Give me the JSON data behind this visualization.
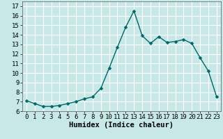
{
  "title": "",
  "xlabel": "Humidex (Indice chaleur)",
  "x": [
    0,
    1,
    2,
    3,
    4,
    5,
    6,
    7,
    8,
    9,
    10,
    11,
    12,
    13,
    14,
    15,
    16,
    17,
    18,
    19,
    20,
    21,
    22,
    23
  ],
  "y": [
    7.1,
    6.8,
    6.5,
    6.5,
    6.6,
    6.8,
    7.0,
    7.3,
    7.5,
    8.4,
    10.5,
    12.7,
    14.8,
    16.5,
    13.9,
    13.1,
    13.8,
    13.2,
    13.3,
    13.5,
    13.1,
    11.6,
    10.2,
    7.5
  ],
  "line_color": "#006666",
  "marker_color": "#006666",
  "bg_color": "#c8e8e8",
  "grid_color": "#ffffff",
  "ylim": [
    6,
    17.5
  ],
  "xlim": [
    -0.5,
    23.5
  ],
  "yticks": [
    6,
    7,
    8,
    9,
    10,
    11,
    12,
    13,
    14,
    15,
    16,
    17
  ],
  "xticks": [
    0,
    1,
    2,
    3,
    4,
    5,
    6,
    7,
    8,
    9,
    10,
    11,
    12,
    13,
    14,
    15,
    16,
    17,
    18,
    19,
    20,
    21,
    22,
    23
  ],
  "tick_fontsize": 6.5,
  "xlabel_fontsize": 7.5,
  "marker_size": 2.5,
  "line_width": 1.0
}
